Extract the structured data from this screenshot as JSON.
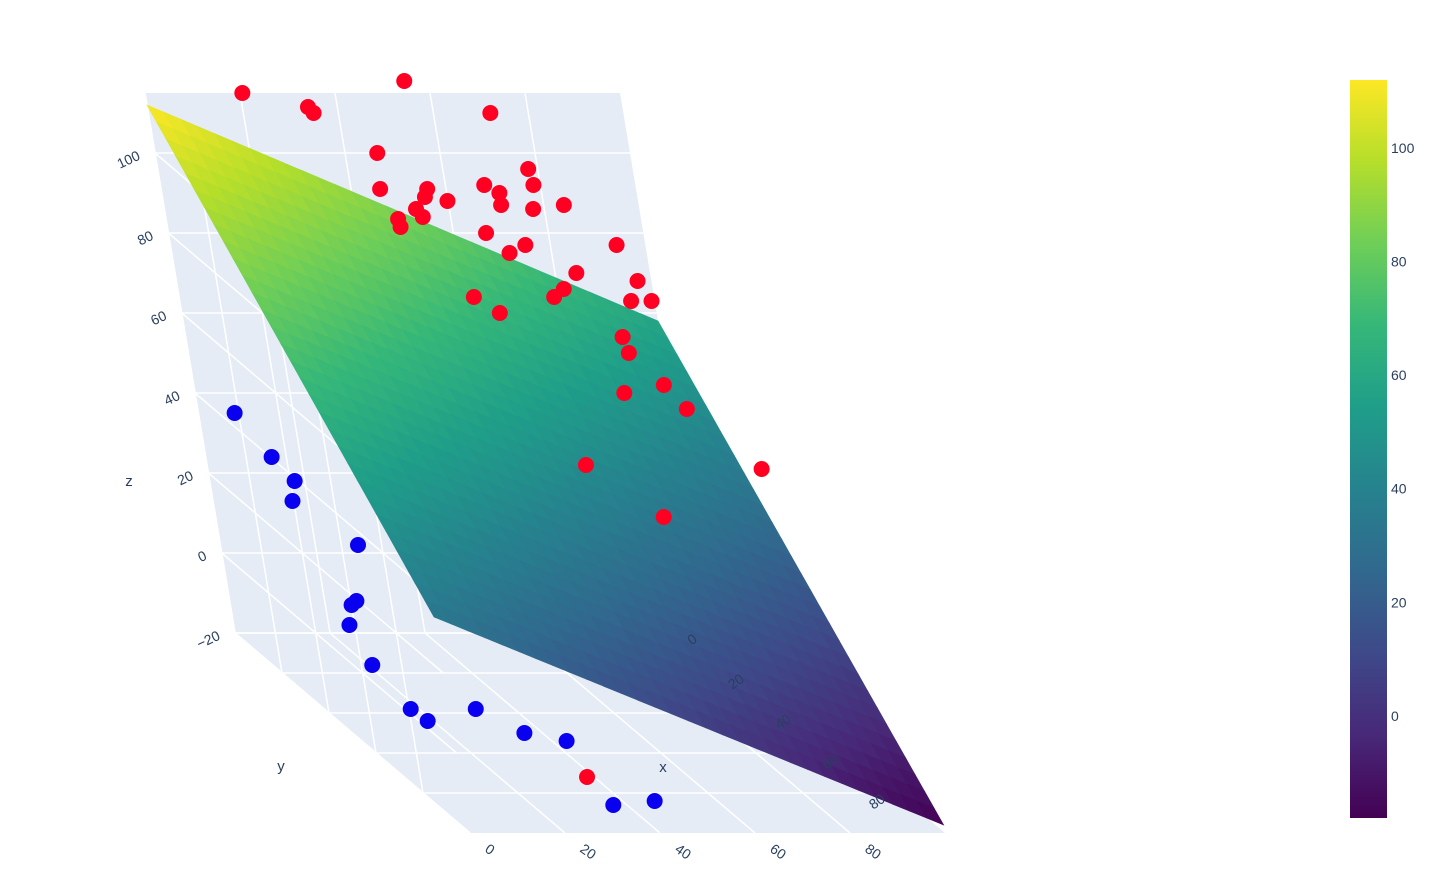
{
  "chart_data": {
    "type": "scatter3d",
    "title": "",
    "axes": {
      "x": {
        "title": "x",
        "range": [
          0,
          100
        ],
        "ticks": [
          "0",
          "20",
          "40",
          "60",
          "80"
        ]
      },
      "y": {
        "title": "y",
        "range": [
          0,
          100
        ],
        "ticks": [
          "0",
          "20",
          "40",
          "60",
          "80"
        ]
      },
      "z": {
        "title": "z",
        "range": [
          -20,
          115
        ],
        "ticks": [
          "−20",
          "0",
          "20",
          "40",
          "60",
          "80",
          "100"
        ]
      }
    },
    "surface": {
      "type": "plane",
      "colorscale": "Viridis",
      "corners": [
        {
          "x": 0,
          "y": 0,
          "z": 112
        },
        {
          "x": 0,
          "y": 100,
          "z": 34
        },
        {
          "x": 100,
          "y": 100,
          "z": -18
        },
        {
          "x": 100,
          "y": 0,
          "z": 58
        }
      ]
    },
    "colorbar": {
      "ticks": [
        "0",
        "20",
        "40",
        "60",
        "80",
        "100"
      ],
      "tick_values": [
        0,
        20,
        40,
        60,
        80,
        100
      ],
      "range": [
        -18,
        112
      ],
      "colors": [
        "#440154",
        "#482878",
        "#3e4989",
        "#31688e",
        "#26828e",
        "#1f9e89",
        "#35b779",
        "#6ece58",
        "#b5de2b",
        "#fde725"
      ]
    },
    "series": [
      {
        "marker_color": "#ff0022",
        "points_above": [
          [
            72,
            0,
            110
          ],
          [
            55,
            0,
            118
          ],
          [
            78,
            0,
            96
          ],
          [
            12,
            20,
            125
          ],
          [
            28,
            16,
            118
          ],
          [
            30,
            9,
            116
          ],
          [
            40,
            16,
            108
          ],
          [
            30,
            38,
            110
          ],
          [
            40,
            36,
            107
          ],
          [
            36,
            40,
            106
          ],
          [
            30,
            45,
            104
          ],
          [
            38,
            38,
            103
          ],
          [
            34,
            35,
            101
          ],
          [
            58,
            24,
            104
          ],
          [
            48,
            28,
            102
          ],
          [
            45,
            26,
            104
          ],
          [
            70,
            18,
            95
          ],
          [
            80,
            10,
            92
          ],
          [
            76,
            6,
            95
          ],
          [
            66,
            12,
            96
          ],
          [
            88,
            14,
            84
          ],
          [
            62,
            30,
            92
          ],
          [
            55,
            38,
            94
          ],
          [
            55,
            28,
            94
          ],
          [
            60,
            26,
            100
          ],
          [
            40,
            52,
            90
          ],
          [
            50,
            40,
            80
          ],
          [
            62,
            40,
            84
          ],
          [
            66,
            36,
            84
          ],
          [
            76,
            20,
            80
          ],
          [
            90,
            22,
            74
          ],
          [
            92,
            12,
            74
          ],
          [
            84,
            26,
            76
          ],
          [
            75,
            40,
            74
          ],
          [
            80,
            30,
            65
          ],
          [
            82,
            40,
            62
          ],
          [
            70,
            48,
            64
          ],
          [
            86,
            40,
            56
          ],
          [
            92,
            58,
            50
          ],
          [
            56,
            56,
            50
          ],
          [
            68,
            62,
            40
          ]
        ],
        "points_below": [
          [
            30,
            92,
            -10
          ]
        ]
      },
      {
        "marker_color": "#0a00f0",
        "points_above": [],
        "points_below": [
          [
            0,
            18,
            44
          ],
          [
            2,
            28,
            38
          ],
          [
            6,
            28,
            32
          ],
          [
            4,
            30,
            28
          ],
          [
            12,
            40,
            22
          ],
          [
            6,
            46,
            10
          ],
          [
            8,
            44,
            10
          ],
          [
            4,
            48,
            6
          ],
          [
            4,
            56,
            0
          ],
          [
            8,
            62,
            -8
          ],
          [
            12,
            60,
            -12
          ],
          [
            20,
            66,
            -6
          ],
          [
            26,
            74,
            -8
          ],
          [
            38,
            66,
            -14
          ],
          [
            32,
            98,
            -14
          ],
          [
            40,
            100,
            -12
          ]
        ]
      }
    ],
    "hidden_points_color": "#0b6f74"
  }
}
